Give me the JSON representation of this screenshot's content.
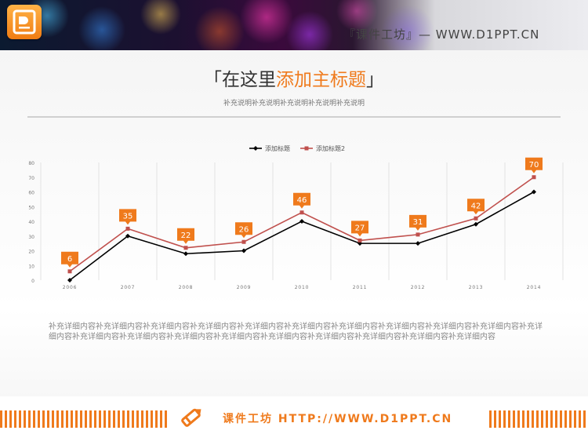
{
  "header": {
    "site": "『课件工坊』— WWW.D1PPT.CN",
    "logo_icon": "presentation-file-icon"
  },
  "title": {
    "bracket_open": "「",
    "plain": "在这里",
    "highlight": "添加主标题",
    "bracket_close": "」"
  },
  "subtitle": "补充说明补充说明补充说明补充说明补充说明",
  "description": "补充详细内容补充详细内容补充详细内容补充详细内容补充详细内容补充详细内容补充详细内容补充详细内容补充详细内容补充详细内容补充详细内容补充详细内容补充详细内容补充详细内容补充详细内容补充详细内容补充详细内容补充详细内容补充详细内容补充详细内容",
  "footer": {
    "text": "课件工坊 HTTP://WWW.D1PPT.CN",
    "icon": "pencil-icon"
  },
  "colors": {
    "accent": "#ef7a1c",
    "series1": "#000000",
    "series2": "#c0504d"
  },
  "chart_data": {
    "type": "line",
    "x": [
      "2006",
      "2007",
      "2008",
      "2009",
      "2010",
      "2011",
      "2012",
      "2013",
      "2014"
    ],
    "series": [
      {
        "name": "添加标题",
        "values": [
          0,
          30,
          18,
          20,
          40,
          25,
          25,
          38,
          60
        ]
      },
      {
        "name": "添加标题2",
        "values": [
          6,
          35,
          22,
          26,
          46,
          27,
          31,
          42,
          70
        ]
      }
    ],
    "data_labels_series": 1,
    "ylim": [
      0,
      80
    ],
    "yticks": [
      0,
      10,
      20,
      30,
      40,
      50,
      60,
      70,
      80
    ],
    "grid": "vertical",
    "legend": "top-center",
    "title": "",
    "xlabel": "",
    "ylabel": ""
  }
}
